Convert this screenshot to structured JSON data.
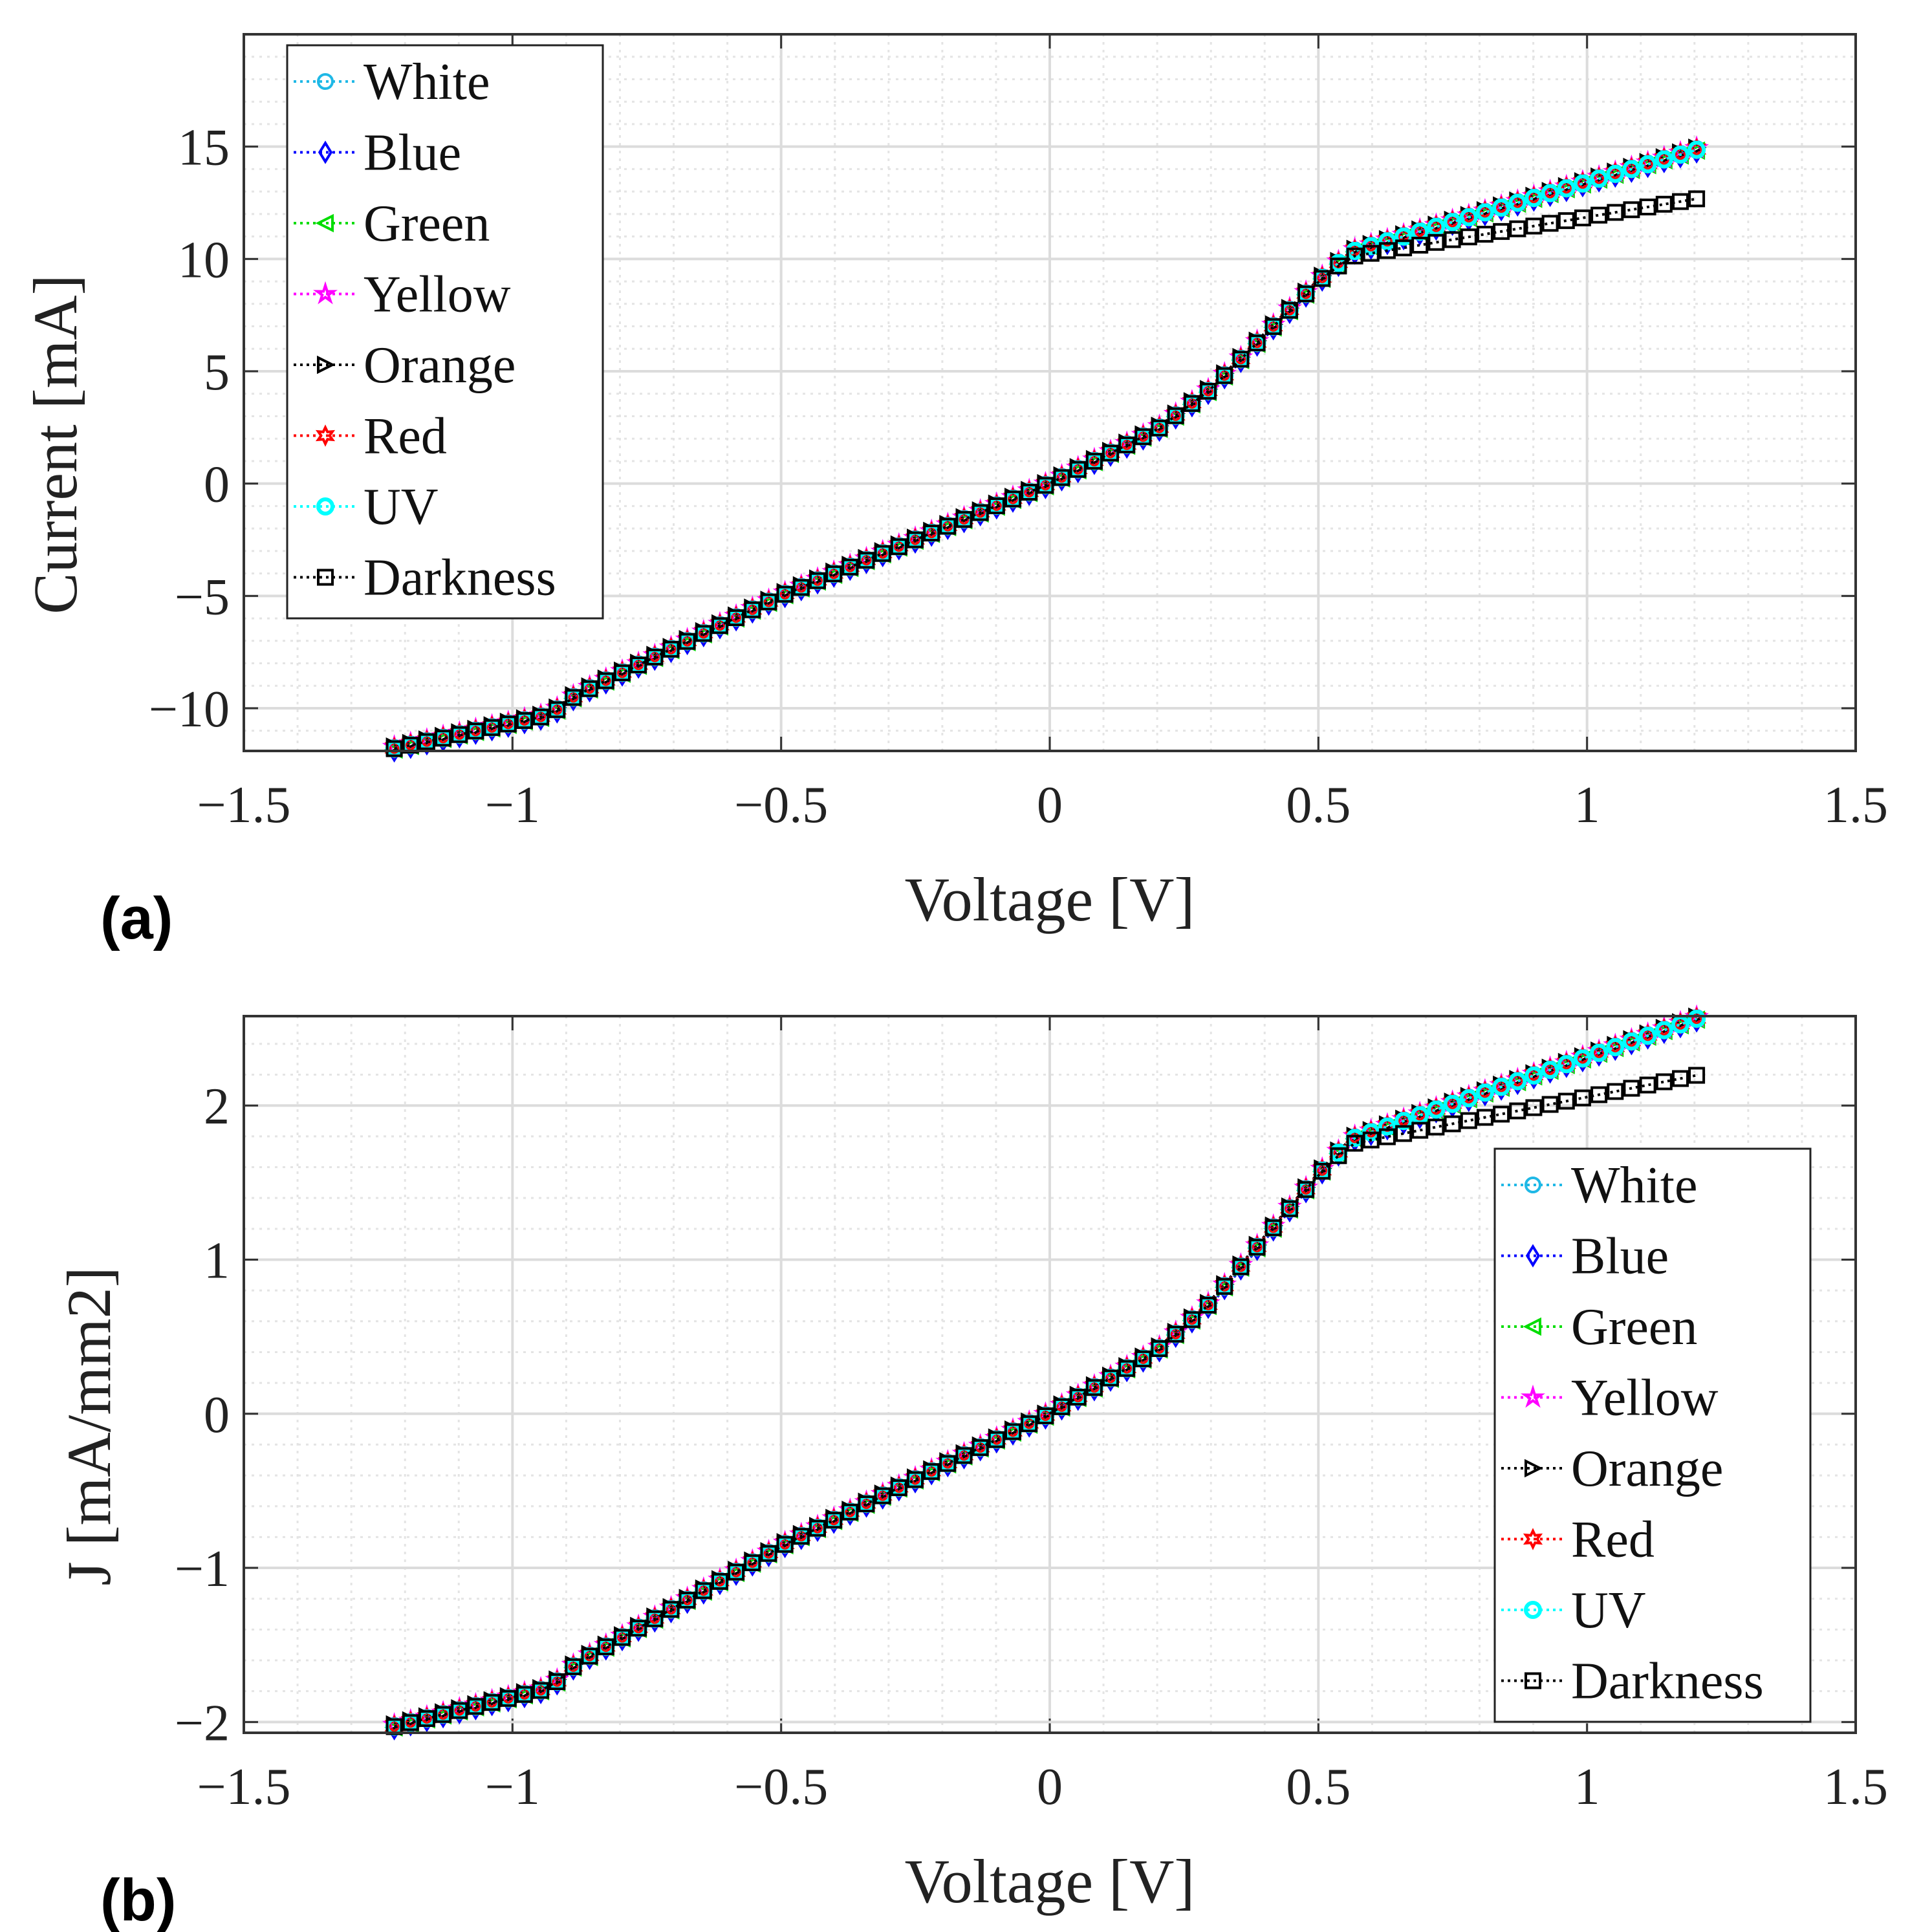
{
  "legend_entries": [
    {
      "name": "White",
      "color": "#1fb8e6",
      "marker": "circle"
    },
    {
      "name": "Blue",
      "color": "#0000ff",
      "marker": "diamond"
    },
    {
      "name": "Green",
      "color": "#00dd00",
      "marker": "triangle-left"
    },
    {
      "name": "Yellow",
      "color": "#ff00ff",
      "marker": "pentagram"
    },
    {
      "name": "Orange",
      "color": "#000000",
      "marker": "triangle-right"
    },
    {
      "name": "Red",
      "color": "#ff0000",
      "marker": "hexagram"
    },
    {
      "name": "UV",
      "color": "#00ffff",
      "marker": "circle"
    },
    {
      "name": "Darkness",
      "color": "#000000",
      "marker": "square"
    }
  ],
  "chart_data": [
    {
      "type": "line",
      "panel_label": "(a)",
      "xlabel": "Voltage [V]",
      "ylabel": "Current [mA]",
      "xlim": [
        -1.5,
        1.5
      ],
      "ylim": [
        -11.9,
        20
      ],
      "xticks": [
        -1.5,
        -1,
        -0.5,
        0,
        0.5,
        1,
        1.5
      ],
      "xtick_labels": [
        "−1.5",
        "−1",
        "−0.5",
        "0",
        "0.5",
        "1",
        "1.5"
      ],
      "yticks": [
        -10,
        -5,
        0,
        5,
        10,
        15
      ],
      "ytick_labels": [
        "−10",
        "−5",
        "0",
        "5",
        "10",
        "15"
      ],
      "minor_x_step": 0.1,
      "minor_y_step": 1,
      "grid": true,
      "legend_position": "top-left",
      "series_light": [
        [
          -1.22,
          -11.8
        ],
        [
          -0.93,
          -10.3
        ],
        [
          -0.88,
          -9.4
        ],
        [
          -0.5,
          -5.0
        ],
        [
          -0.2,
          -2.0
        ],
        [
          0,
          0
        ],
        [
          0.2,
          2.4
        ],
        [
          0.3,
          4.2
        ],
        [
          0.4,
          6.6
        ],
        [
          0.5,
          9.0
        ],
        [
          0.56,
          10.3
        ],
        [
          1.21,
          14.9
        ]
      ],
      "series_dark": [
        [
          -1.22,
          -11.8
        ],
        [
          -0.93,
          -10.3
        ],
        [
          -0.88,
          -9.4
        ],
        [
          -0.5,
          -5.0
        ],
        [
          -0.2,
          -2.0
        ],
        [
          0,
          0
        ],
        [
          0.2,
          2.4
        ],
        [
          0.3,
          4.2
        ],
        [
          0.4,
          6.6
        ],
        [
          0.5,
          9.0
        ],
        [
          0.56,
          10.1
        ],
        [
          1.21,
          12.7
        ]
      ]
    },
    {
      "type": "line",
      "panel_label": "(b)",
      "xlabel": "Voltage [V]",
      "ylabel": "J [mA/mm2]",
      "ylabel_parts": [
        "J",
        "[mA/mm",
        "2",
        "]"
      ],
      "xlim": [
        -1.5,
        1.5
      ],
      "ylim": [
        -2.07,
        2.58
      ],
      "xticks": [
        -1.5,
        -1,
        -0.5,
        0,
        0.5,
        1,
        1.5
      ],
      "xtick_labels": [
        "−1.5",
        "−1",
        "−0.5",
        "0",
        "0.5",
        "1",
        "1.5"
      ],
      "yticks": [
        -2,
        -1,
        0,
        1,
        2
      ],
      "ytick_labels": [
        "−2",
        "−1",
        "0",
        "1",
        "2"
      ],
      "minor_x_step": 0.1,
      "minor_y_step": 0.2,
      "grid": true,
      "legend_position": "bottom-right",
      "series_light": [
        [
          -1.22,
          -2.03
        ],
        [
          -0.93,
          -1.78
        ],
        [
          -0.88,
          -1.62
        ],
        [
          -0.5,
          -0.86
        ],
        [
          -0.2,
          -0.34
        ],
        [
          0,
          0
        ],
        [
          0.2,
          0.41
        ],
        [
          0.3,
          0.72
        ],
        [
          0.4,
          1.14
        ],
        [
          0.5,
          1.55
        ],
        [
          0.56,
          1.78
        ],
        [
          1.21,
          2.57
        ]
      ],
      "series_dark": [
        [
          -1.22,
          -2.03
        ],
        [
          -0.93,
          -1.78
        ],
        [
          -0.88,
          -1.62
        ],
        [
          -0.5,
          -0.86
        ],
        [
          -0.2,
          -0.34
        ],
        [
          0,
          0
        ],
        [
          0.2,
          0.41
        ],
        [
          0.3,
          0.72
        ],
        [
          0.4,
          1.14
        ],
        [
          0.5,
          1.55
        ],
        [
          0.56,
          1.75
        ],
        [
          1.21,
          2.2
        ]
      ]
    }
  ]
}
